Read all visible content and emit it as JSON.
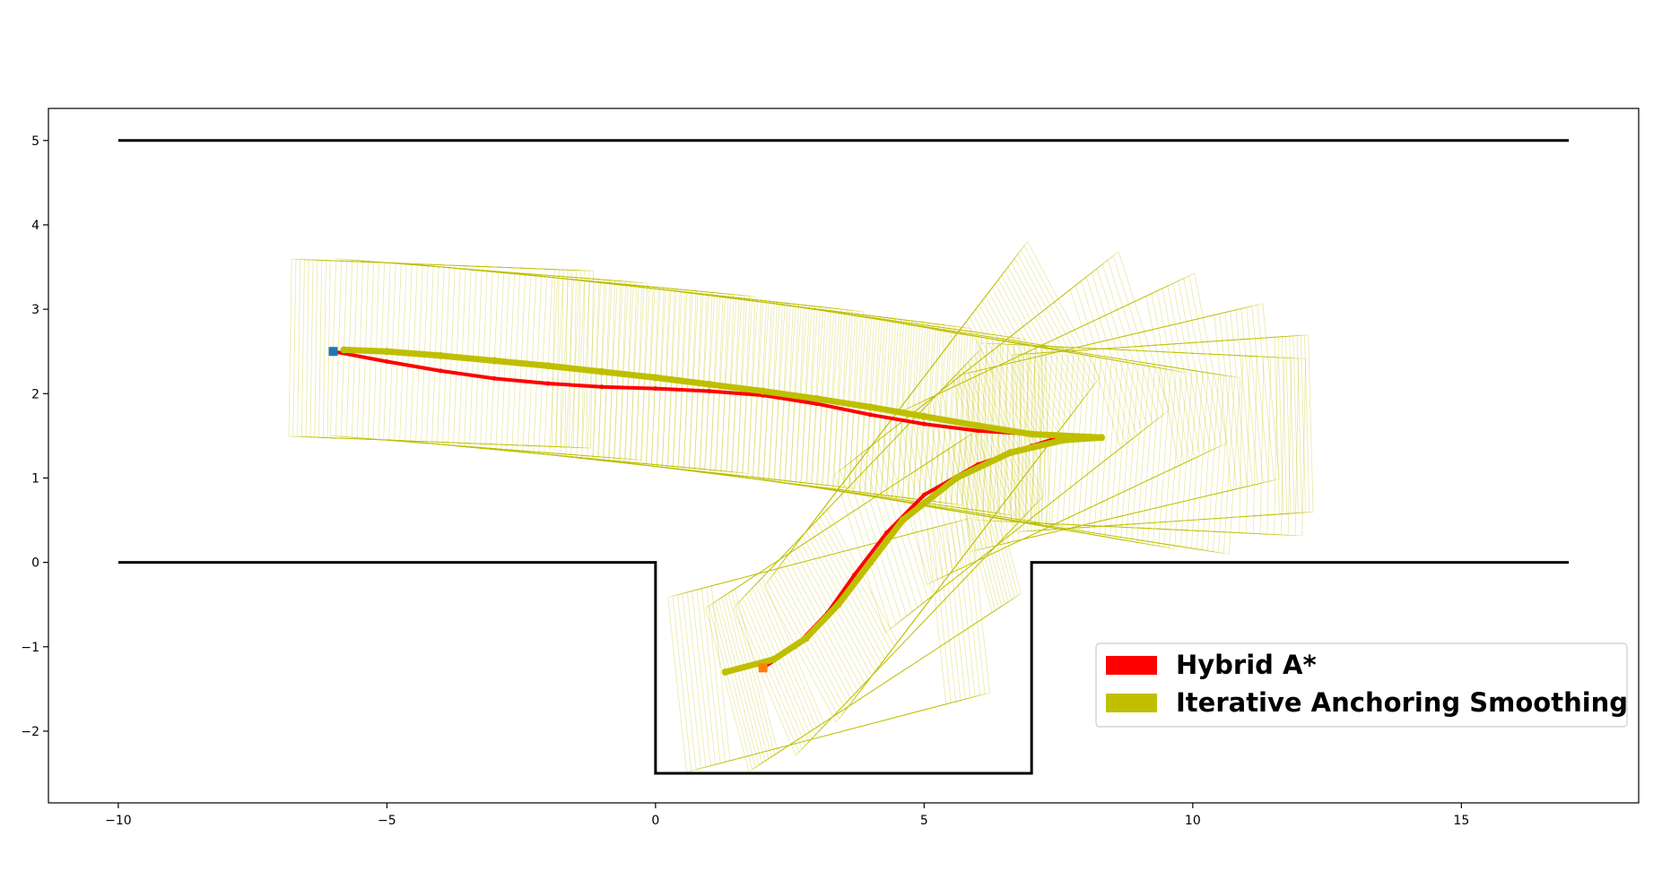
{
  "chart_data": {
    "type": "line",
    "title": "",
    "xlabel": "",
    "ylabel": "",
    "xlim": [
      -11.3,
      18.3
    ],
    "ylim": [
      -2.85,
      5.38
    ],
    "xticks": [
      -10,
      -5,
      0,
      5,
      10,
      15
    ],
    "yticks": [
      -2,
      -1,
      0,
      1,
      2,
      3,
      4,
      5
    ],
    "grid": false,
    "legend_position": "lower-right",
    "boundaries": {
      "upper_wall": [
        [
          -10,
          5
        ],
        [
          17,
          5
        ]
      ],
      "lower_wall": [
        [
          -10,
          0
        ],
        [
          0,
          0
        ],
        [
          0,
          -2.5
        ],
        [
          7,
          -2.5
        ],
        [
          7,
          0
        ],
        [
          17,
          0
        ]
      ]
    },
    "start_point": [
      -6.0,
      2.5
    ],
    "end_point": [
      2.0,
      -1.25
    ],
    "series": [
      {
        "name": "Hybrid A*",
        "color": "#ff0000",
        "x": [
          -6.0,
          -5.0,
          -4.0,
          -3.0,
          -2.0,
          -1.0,
          0.0,
          1.0,
          2.0,
          3.0,
          4.0,
          5.0,
          6.0,
          7.0,
          7.6,
          7.0,
          6.0,
          5.0,
          4.3,
          3.7,
          3.2,
          2.6,
          2.0
        ],
        "y": [
          2.5,
          2.38,
          2.27,
          2.18,
          2.12,
          2.08,
          2.06,
          2.03,
          1.98,
          1.88,
          1.75,
          1.64,
          1.56,
          1.52,
          1.5,
          1.38,
          1.16,
          0.8,
          0.35,
          -0.15,
          -0.6,
          -1.0,
          -1.25
        ]
      },
      {
        "name": "Iterative Anchoring Smoothing",
        "color": "#bfbf00",
        "x": [
          -5.8,
          -5.0,
          -4.0,
          -3.0,
          -2.0,
          -1.0,
          0.0,
          1.0,
          2.0,
          3.0,
          4.0,
          5.0,
          6.0,
          7.0,
          8.3,
          7.6,
          6.6,
          5.6,
          4.6,
          4.0,
          3.4,
          2.8,
          2.2,
          1.3
        ],
        "y": [
          2.52,
          2.5,
          2.45,
          2.39,
          2.33,
          2.26,
          2.19,
          2.11,
          2.03,
          1.94,
          1.84,
          1.73,
          1.62,
          1.52,
          1.48,
          1.45,
          1.3,
          1.0,
          0.5,
          0.0,
          -0.5,
          -0.9,
          -1.15,
          -1.3
        ]
      }
    ]
  }
}
